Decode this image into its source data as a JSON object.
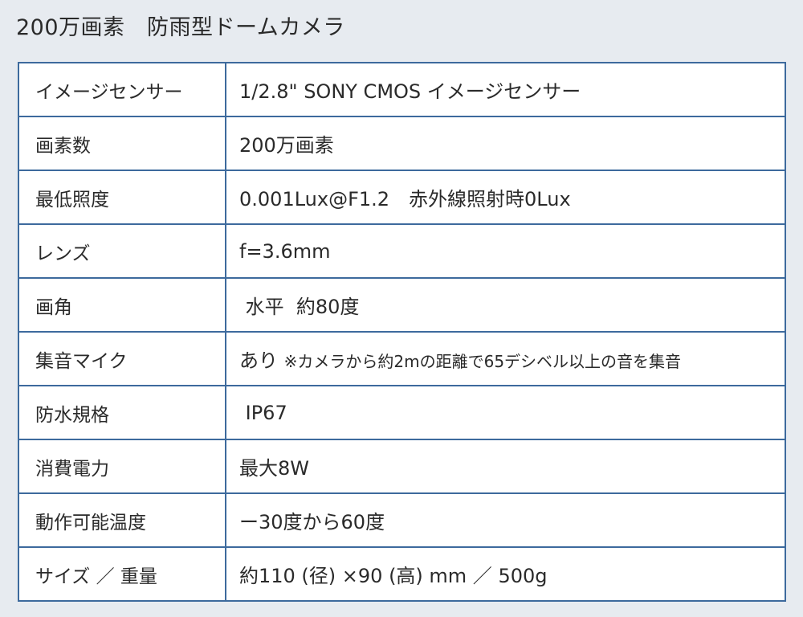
{
  "title": "200万画素　防雨型ドームカメラ",
  "specs": [
    {
      "label": "イメージセンサー",
      "value": "1/2.8\" SONY CMOS イメージセンサー"
    },
    {
      "label": "画素数",
      "value": "200万画素"
    },
    {
      "label": "最低照度",
      "value": "0.001Lux@F1.2　赤外線照射時0Lux"
    },
    {
      "label": "レンズ",
      "value": "f=3.6mm"
    },
    {
      "label": "画角",
      "value": " 水平  約80度"
    },
    {
      "label": "集音マイク",
      "value": "あり",
      "note": "※カメラから約2mの距離で65デシベル以上の音を集音"
    },
    {
      "label": "防水規格",
      "value": " IP67"
    },
    {
      "label": "消費電力",
      "value": "最大8W"
    },
    {
      "label": "動作可能温度",
      "value": "ー30度から60度"
    },
    {
      "label": "サイズ ／ 重量",
      "value": "約110 (径) ×90 (高) mm ／ 500g"
    }
  ]
}
